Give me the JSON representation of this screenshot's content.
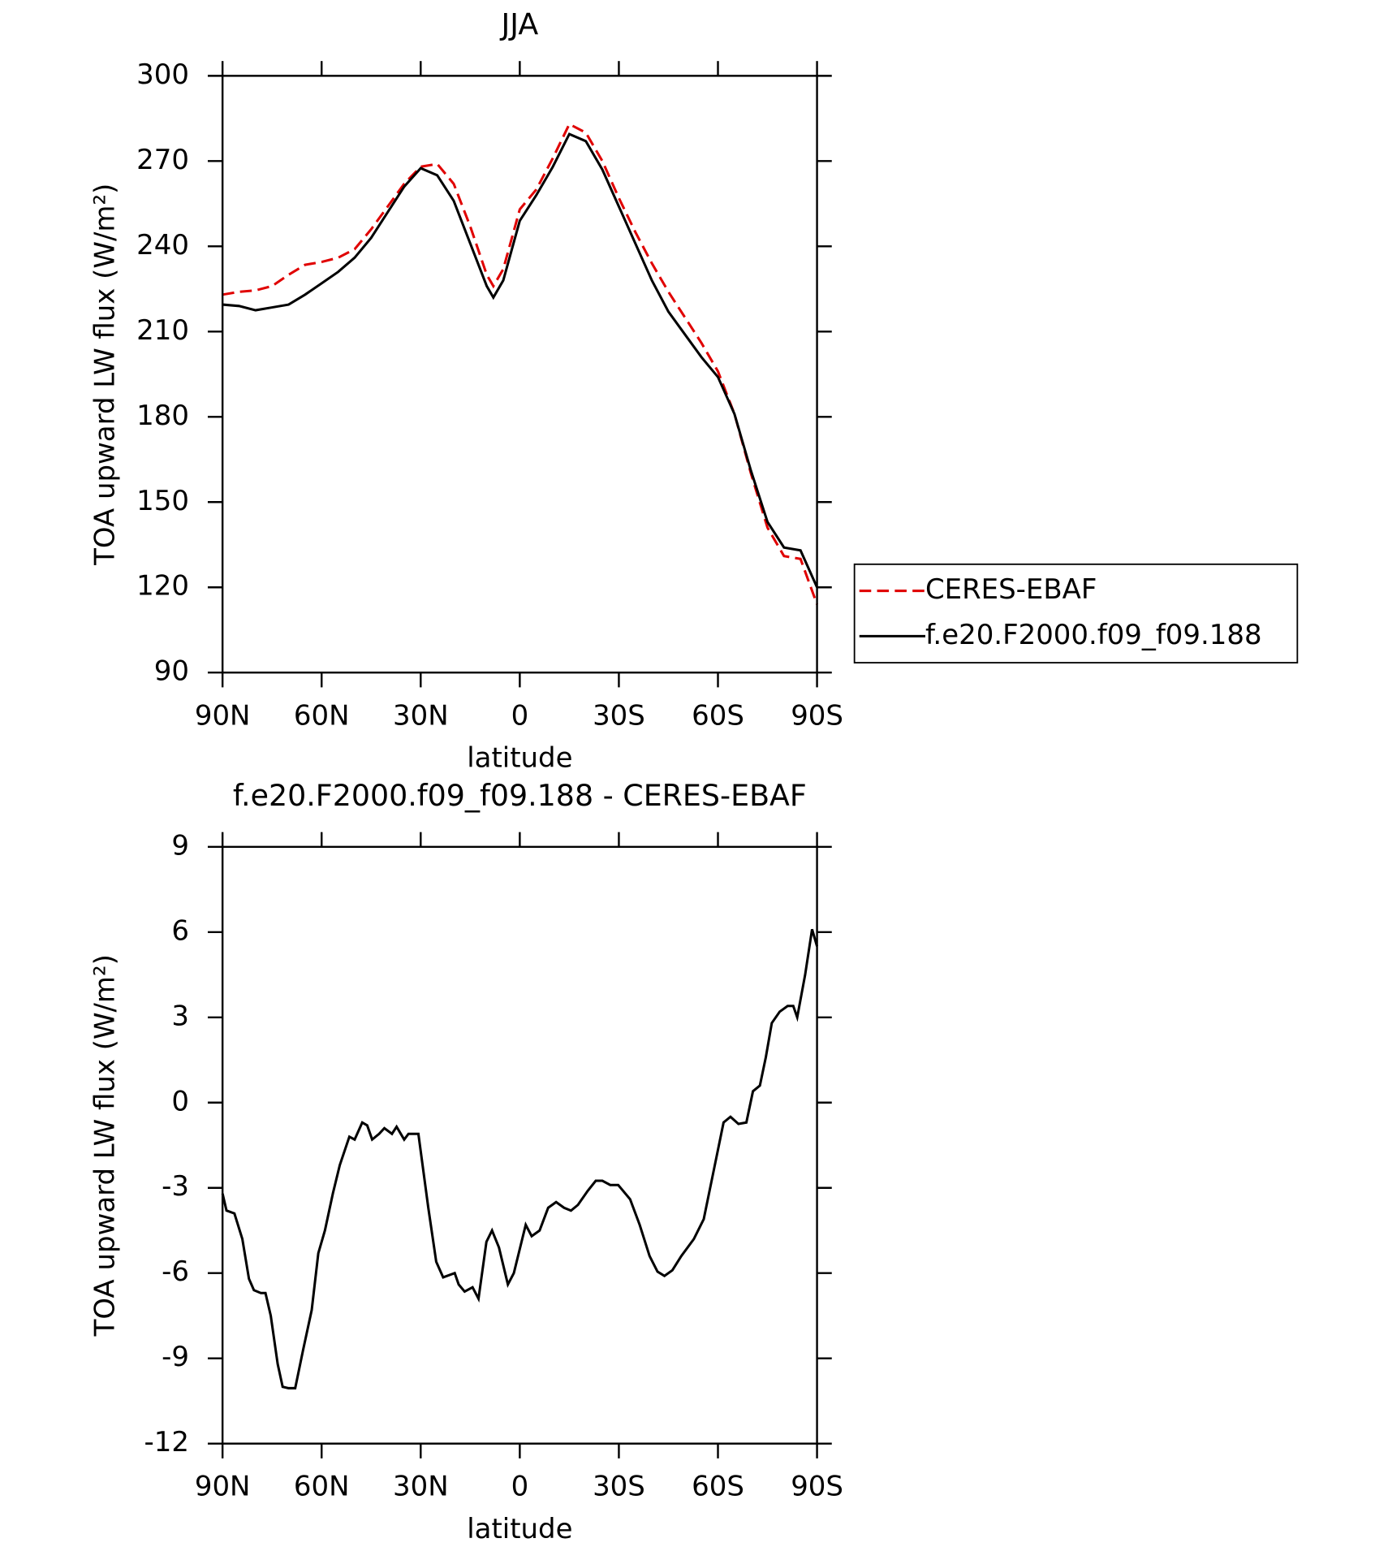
{
  "chart_data": [
    {
      "type": "line",
      "title": "JJA",
      "xlabel": "latitude",
      "ylabel": "TOA upward LW flux (W/m²)",
      "x": [
        90,
        85,
        80,
        75,
        70,
        65,
        60,
        55,
        50,
        45,
        40,
        35,
        30,
        25,
        20,
        15,
        10,
        8,
        5,
        0,
        -5,
        -10,
        -15,
        -20,
        -25,
        -30,
        -35,
        -40,
        -45,
        -50,
        -55,
        -60,
        -65,
        -70,
        -75,
        -80,
        -85,
        -90
      ],
      "series": [
        {
          "name": "CERES-EBAF",
          "color": "#e00000",
          "linestyle": "dashed",
          "values": [
            223,
            224,
            224.5,
            226,
            230,
            233.5,
            234.5,
            236,
            239,
            246,
            254,
            262,
            268,
            269,
            262,
            247,
            230,
            226,
            232,
            253,
            260,
            271,
            283,
            280,
            270,
            257,
            245,
            234,
            224,
            215,
            206,
            196,
            181,
            160,
            141,
            131,
            130,
            114
          ]
        },
        {
          "name": "f.e20.F2000.f09_f09.188",
          "color": "#000000",
          "linestyle": "solid",
          "values": [
            219.5,
            219,
            217.5,
            218.5,
            219.5,
            223,
            227,
            231,
            236,
            243,
            252,
            261,
            267.5,
            265,
            256,
            241,
            226,
            222,
            228,
            249,
            258,
            268,
            279.5,
            277,
            267,
            254,
            241,
            228,
            217,
            209,
            201,
            194,
            181,
            161,
            143,
            134,
            133,
            120
          ]
        }
      ],
      "xlim": [
        90,
        -90
      ],
      "xticks": [
        {
          "value": 90,
          "label": "90N"
        },
        {
          "value": 60,
          "label": "60N"
        },
        {
          "value": 30,
          "label": "30N"
        },
        0,
        {
          "value": -30,
          "label": "30S"
        },
        {
          "value": -60,
          "label": "60S"
        },
        {
          "value": -90,
          "label": "90S"
        }
      ],
      "ylim": [
        90,
        300
      ],
      "yticks": [
        90,
        120,
        150,
        180,
        210,
        240,
        270,
        300
      ],
      "legend": "right"
    },
    {
      "type": "line",
      "title": "f.e20.F2000.f09_f09.188 - CERES-EBAF",
      "xlabel": "latitude",
      "ylabel": "TOA upward LW flux (W/m²)",
      "x": [
        90,
        88.8,
        86.4,
        84,
        82,
        80.5,
        78.4,
        77,
        75.4,
        73.3,
        71.8,
        70,
        68,
        65.6,
        63,
        61,
        59,
        56.6,
        54.5,
        51.6,
        50,
        47.7,
        46.2,
        44.7,
        42.6,
        41,
        38.7,
        37.3,
        35,
        33.7,
        30.7,
        27.7,
        25.3,
        23.2,
        19.7,
        18.5,
        16.7,
        14.3,
        12.5,
        10.1,
        8.4,
        6.3,
        3.6,
        1.8,
        -1.8,
        -3.6,
        -6,
        -8.6,
        -11,
        -13.4,
        -15.5,
        -17.6,
        -20.6,
        -23,
        -25,
        -27.4,
        -29.8,
        -33.4,
        -36.3,
        -39.3,
        -41.7,
        -43.8,
        -46.2,
        -48.9,
        -52.7,
        -55.7,
        -58.7,
        -61.7,
        -63.8,
        -66.2,
        -68.6,
        -70.6,
        -72.7,
        -74.5,
        -76.3,
        -78.7,
        -81.1,
        -82.8,
        -84,
        -86.4,
        -88.5,
        -90
      ],
      "values": [
        -3.2,
        -3.8,
        -3.9,
        -4.8,
        -6.2,
        -6.6,
        -6.7,
        -6.7,
        -7.5,
        -9.2,
        -10,
        -10.05,
        -10.05,
        -8.7,
        -7.3,
        -5.3,
        -4.5,
        -3.2,
        -2.2,
        -1.2,
        -1.3,
        -0.7,
        -0.8,
        -1.3,
        -1.1,
        -0.9,
        -1.1,
        -0.85,
        -1.3,
        -1.1,
        -1.1,
        -3.7,
        -5.6,
        -6.15,
        -6,
        -6.4,
        -6.65,
        -6.5,
        -6.9,
        -4.9,
        -4.5,
        -5.1,
        -6.4,
        -6,
        -4.3,
        -4.7,
        -4.5,
        -3.7,
        -3.5,
        -3.7,
        -3.8,
        -3.6,
        -3.1,
        -2.75,
        -2.75,
        -2.9,
        -2.9,
        -3.4,
        -4.3,
        -5.4,
        -5.95,
        -6.1,
        -5.9,
        -5.4,
        -4.8,
        -4.1,
        -2.4,
        -0.7,
        -0.5,
        -0.75,
        -0.7,
        0.4,
        0.6,
        1.6,
        2.8,
        3.2,
        3.4,
        3.4,
        3,
        4.5,
        6.1,
        5.5
      ],
      "color": "#000000",
      "linestyle": "solid",
      "xlim": [
        90,
        -90
      ],
      "xticks": [
        {
          "value": 90,
          "label": "90N"
        },
        {
          "value": 60,
          "label": "60N"
        },
        {
          "value": 30,
          "label": "30N"
        },
        0,
        {
          "value": -30,
          "label": "30S"
        },
        {
          "value": -60,
          "label": "60S"
        },
        {
          "value": -90,
          "label": "90S"
        }
      ],
      "ylim": [
        -12,
        9
      ],
      "yticks": [
        -12,
        -9,
        -6,
        -3,
        0,
        3,
        6,
        9
      ]
    }
  ]
}
